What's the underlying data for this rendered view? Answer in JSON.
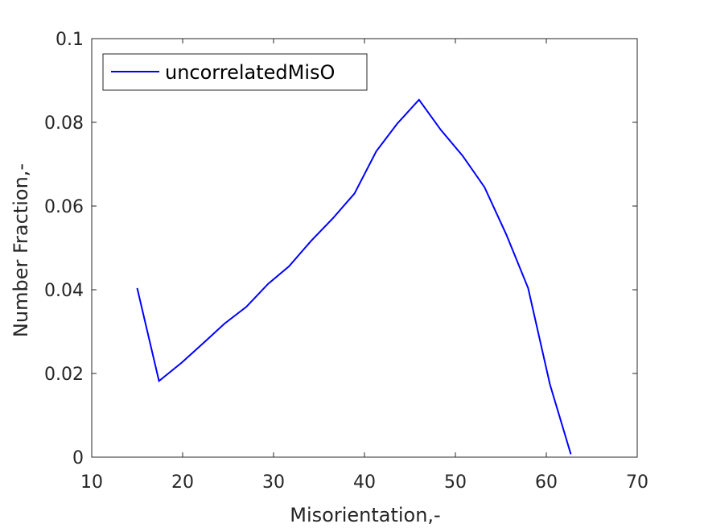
{
  "chart_data": {
    "type": "line",
    "xlabel": "Misorientation,-",
    "ylabel": "Number Fraction,-",
    "xlim": [
      10,
      70
    ],
    "ylim": [
      0,
      0.1
    ],
    "xticks": [
      10,
      20,
      30,
      40,
      50,
      60,
      70
    ],
    "yticks": [
      0,
      0.02,
      0.04,
      0.06,
      0.08,
      0.1
    ],
    "xtick_labels": [
      "10",
      "20",
      "30",
      "40",
      "50",
      "60",
      "70"
    ],
    "ytick_labels": [
      "0",
      "0.02",
      "0.04",
      "0.06",
      "0.08",
      "0.1"
    ],
    "grid": false,
    "legend_position": "top-left",
    "series": [
      {
        "name": "uncorrelatedMisO",
        "color": "#0000ff",
        "x": [
          15.0,
          17.4,
          19.9,
          22.3,
          24.6,
          27.0,
          29.4,
          31.7,
          34.1,
          36.5,
          38.9,
          41.3,
          43.6,
          46.0,
          48.4,
          50.8,
          53.2,
          55.6,
          58.0,
          60.4,
          62.7
        ],
        "y": [
          0.0404,
          0.0182,
          0.0226,
          0.0273,
          0.0319,
          0.0359,
          0.0414,
          0.0456,
          0.0516,
          0.057,
          0.063,
          0.0731,
          0.0797,
          0.0854,
          0.0782,
          0.072,
          0.0645,
          0.0532,
          0.0404,
          0.0174,
          0.0007
        ]
      }
    ]
  }
}
